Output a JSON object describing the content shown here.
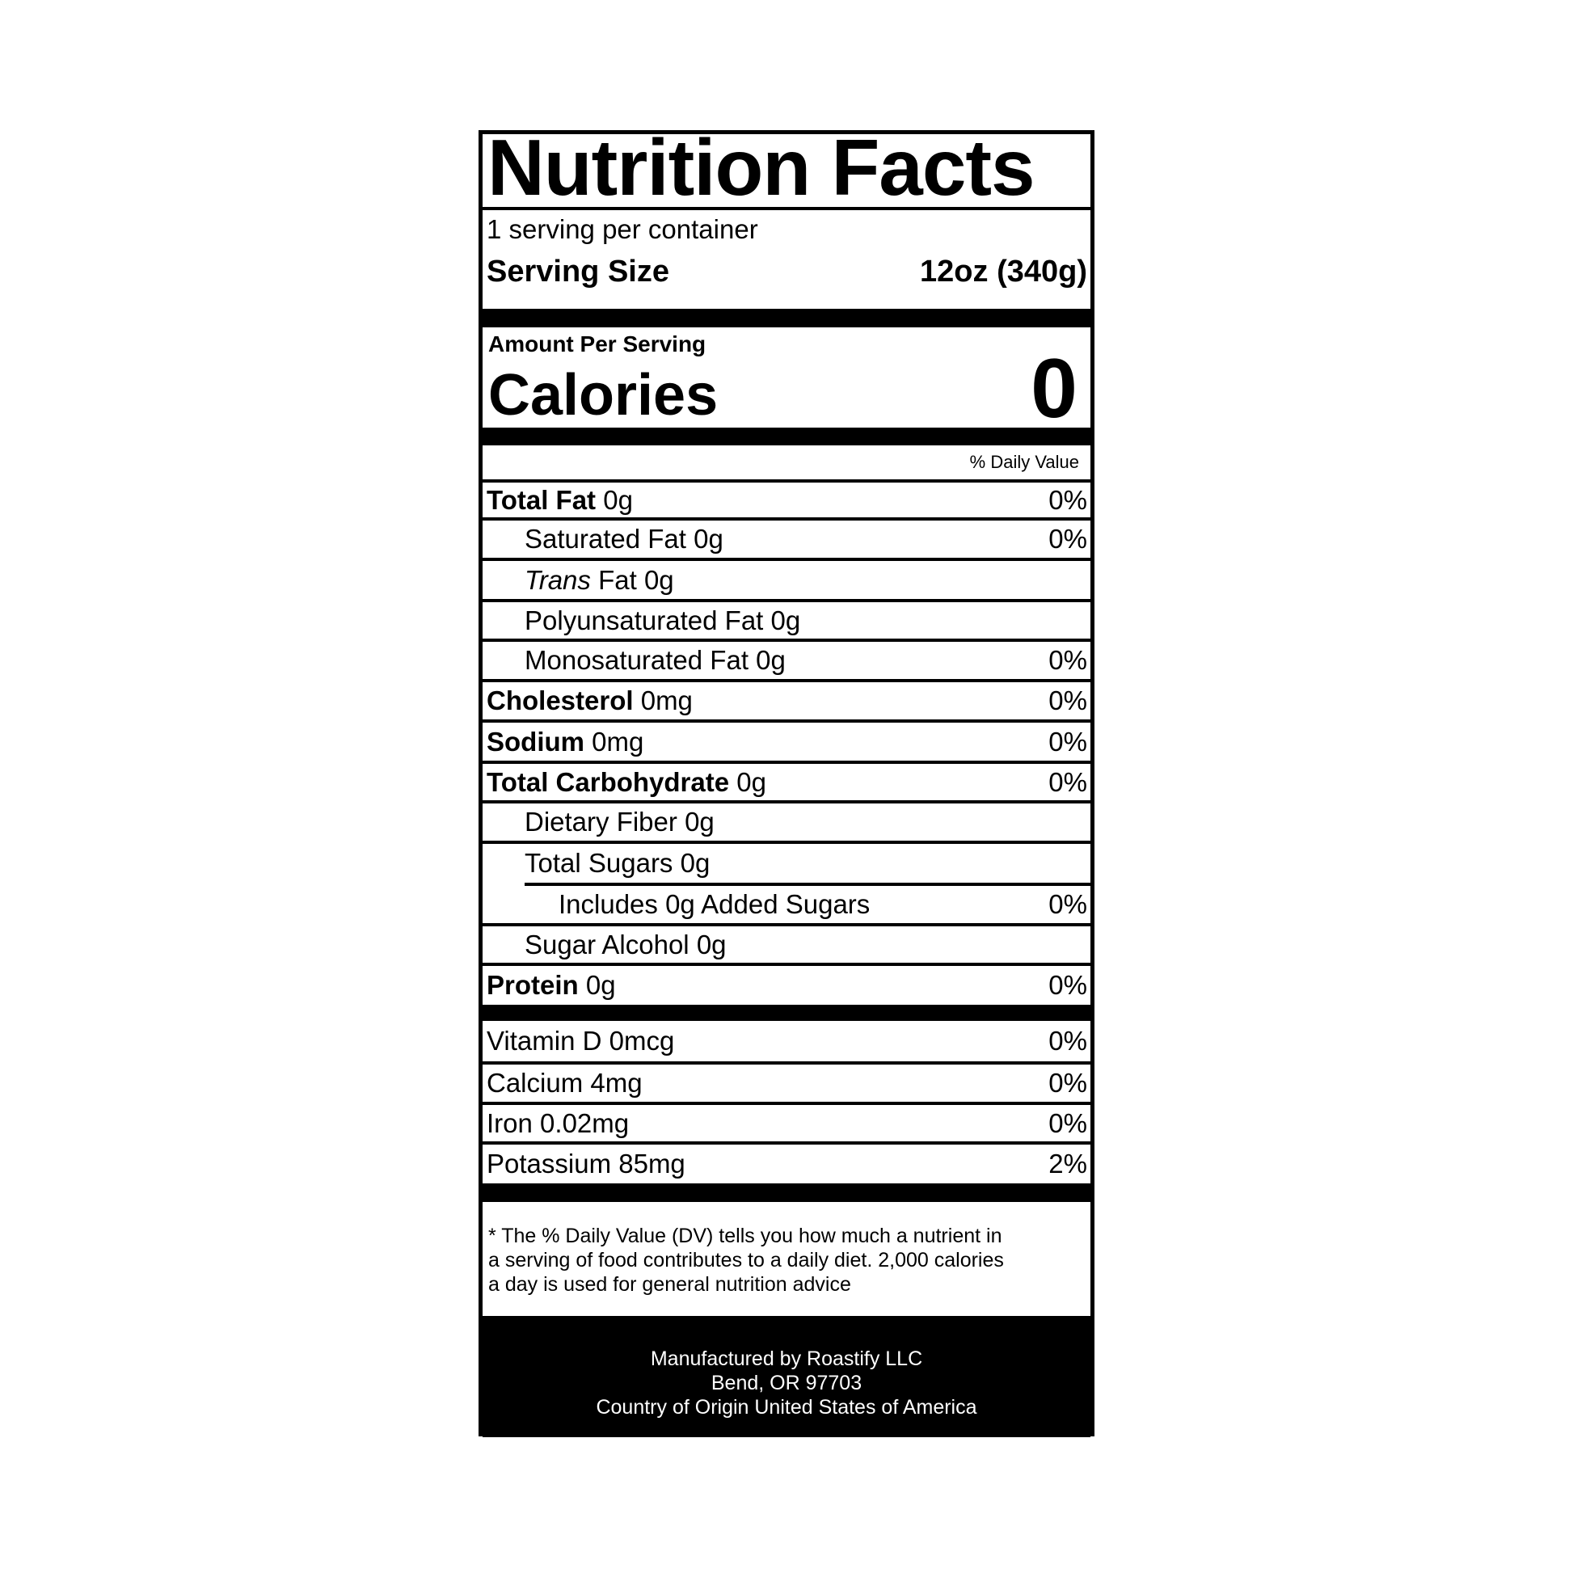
{
  "title": "Nutrition Facts",
  "servings_per_container": "1 serving per container",
  "serving_size": {
    "label": "Serving Size",
    "value": "12oz (340g)"
  },
  "amount_per_serving": "Amount Per Serving",
  "calories": {
    "label": "Calories",
    "value": "0"
  },
  "daily_value_header": "% Daily Value",
  "nutrients": [
    {
      "name": "Total Fat",
      "amount": "0g",
      "dv": "0%"
    },
    {
      "name": "Saturated Fat",
      "amount": "0g",
      "dv": "0%"
    },
    {
      "name_italic": "Trans",
      "name": "Fat",
      "amount": "0g",
      "dv": ""
    },
    {
      "name": "Polyunsaturated Fat",
      "amount": "0g",
      "dv": ""
    },
    {
      "name": "Monosaturated Fat",
      "amount": "0g",
      "dv": "0%"
    },
    {
      "name": "Cholesterol",
      "amount": "0mg",
      "dv": "0%"
    },
    {
      "name": "Sodium",
      "amount": "0mg",
      "dv": "0%"
    },
    {
      "name": "Total Carbohydrate",
      "amount": "0g",
      "dv": "0%"
    },
    {
      "name": "Dietary Fiber",
      "amount": "0g",
      "dv": ""
    },
    {
      "name": "Total Sugars",
      "amount": "0g",
      "dv": ""
    },
    {
      "name": "Includes 0g Added Sugars",
      "amount": "",
      "dv": "0%"
    },
    {
      "name": "Sugar Alcohol",
      "amount": "0g",
      "dv": ""
    },
    {
      "name": "Protein",
      "amount": "0g",
      "dv": "0%"
    }
  ],
  "vitamins": [
    {
      "name": "Vitamin D",
      "amount": "0mcg",
      "dv": "0%"
    },
    {
      "name": "Calcium",
      "amount": "4mg",
      "dv": "0%"
    },
    {
      "name": "Iron",
      "amount": "0.02mg",
      "dv": "0%"
    },
    {
      "name": "Potassium",
      "amount": "85mg",
      "dv": "2%"
    }
  ],
  "footnote": [
    "* The % Daily Value (DV) tells you how much a nutrient in",
    "a serving of food contributes to a daily diet. 2,000 calories",
    "a day is used for general nutrition advice"
  ],
  "manufacturer": [
    "Manufactured by Roastify LLC",
    "Bend, OR 97703",
    "Country of Origin United States of America"
  ]
}
